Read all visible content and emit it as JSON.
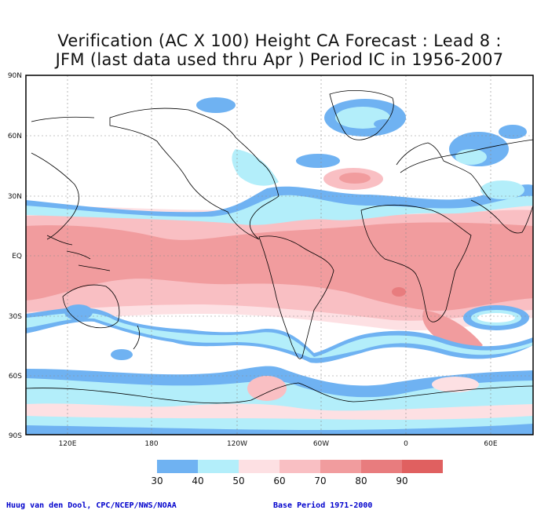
{
  "title_line1": "Verification (AC X 100) Height CA Forecast : Lead 8 :",
  "title_line2": "JFM (last data used thru Apr ) Period IC in 1956-2007",
  "lat_labels": [
    "90N",
    "60N",
    "30N",
    "EQ",
    "30S",
    "60S",
    "90S"
  ],
  "lon_labels": [
    "120E",
    "180",
    "120W",
    "60W",
    "0",
    "60E"
  ],
  "colorbar": {
    "ticks": [
      "30",
      "40",
      "50",
      "60",
      "70",
      "80",
      "90"
    ],
    "colors": [
      "#6fb2f2",
      "#b3eefa",
      "#fde0e3",
      "#f9bfc3",
      "#f19c9e",
      "#e87c7e",
      "#e06060"
    ]
  },
  "footer_left": "Huug van den Dool, CPC/NCEP/NWS/NOAA",
  "footer_right": "Base Period 1971-2000"
}
